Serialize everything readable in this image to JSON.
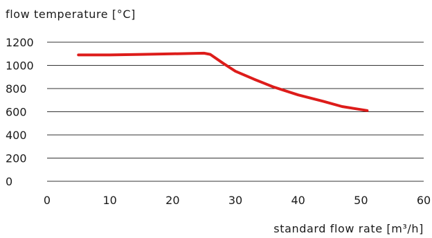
{
  "chart_data": {
    "type": "line",
    "ylabel": "flow temperature [°C]",
    "xlabel": "standard flow rate [m³/h]",
    "xlim": [
      0,
      60
    ],
    "ylim": [
      0,
      1200
    ],
    "x_ticks": [
      0,
      10,
      20,
      30,
      40,
      50,
      60
    ],
    "y_ticks": [
      0,
      200,
      400,
      600,
      800,
      1000,
      1200
    ],
    "x_tick_labels": [
      "0",
      "10",
      "20",
      "30",
      "40",
      "50",
      "60"
    ],
    "y_tick_labels": [
      "0",
      "200",
      "400",
      "600",
      "800",
      "1000",
      "1200"
    ],
    "grid": "horizontal",
    "legend": "none",
    "series": [
      {
        "color": "#dd1c1a",
        "x": [
          5,
          10,
          15,
          20,
          25,
          26,
          28,
          30,
          33,
          36,
          40,
          44,
          47,
          51
        ],
        "y": [
          1090,
          1090,
          1095,
          1100,
          1105,
          1095,
          1020,
          950,
          880,
          815,
          745,
          690,
          645,
          610
        ]
      }
    ]
  }
}
